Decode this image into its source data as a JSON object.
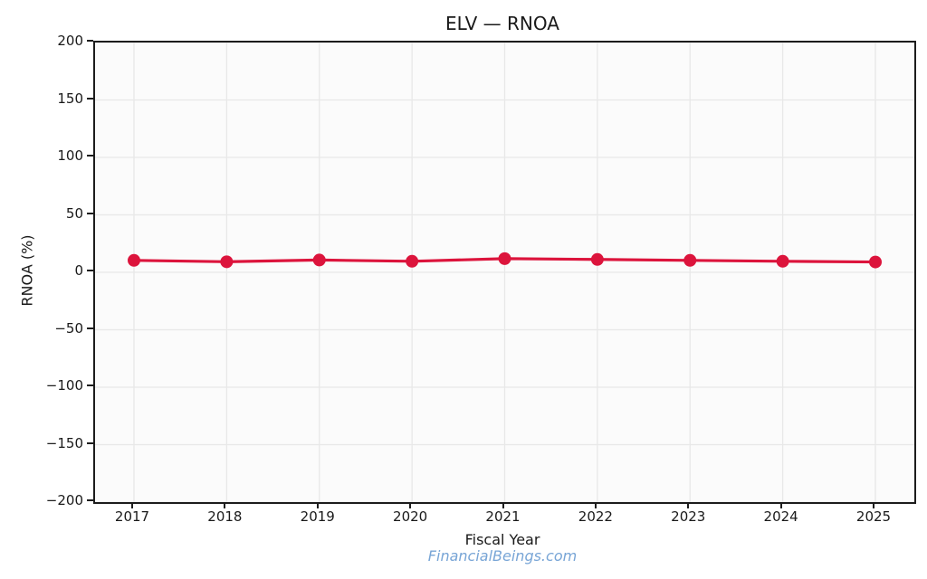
{
  "chart_data": {
    "type": "line",
    "title": "ELV — RNOA",
    "xlabel": "Fiscal Year",
    "ylabel": "RNOA (%)",
    "categories": [
      "2017",
      "2018",
      "2019",
      "2020",
      "2021",
      "2022",
      "2023",
      "2024",
      "2025"
    ],
    "series": [
      {
        "name": "RNOA",
        "values": [
          10.4,
          9.2,
          10.7,
          9.6,
          11.9,
          11.2,
          10.4,
          9.6,
          9.0
        ]
      }
    ],
    "ylim": [
      -200,
      200
    ],
    "yticks": [
      200,
      150,
      100,
      50,
      0,
      -50,
      -100,
      -150,
      -200
    ],
    "ytick_labels": [
      "200",
      "150",
      "100",
      "50",
      "0",
      "−50",
      "−100",
      "−150",
      "−200"
    ],
    "grid": true,
    "legend_visible": false,
    "line_color": "#DC143C",
    "marker": "circle"
  },
  "footer": {
    "watermark": "FinancialBeings.com"
  },
  "colors": {
    "line": "#DC143C",
    "grid": "#e8e8e8",
    "spine": "#1c1c1c",
    "tick_text": "#1a1a1a",
    "watermark": "#78a5d6",
    "plot_background": "#fbfbfb",
    "figure_background": "#ffffff"
  }
}
